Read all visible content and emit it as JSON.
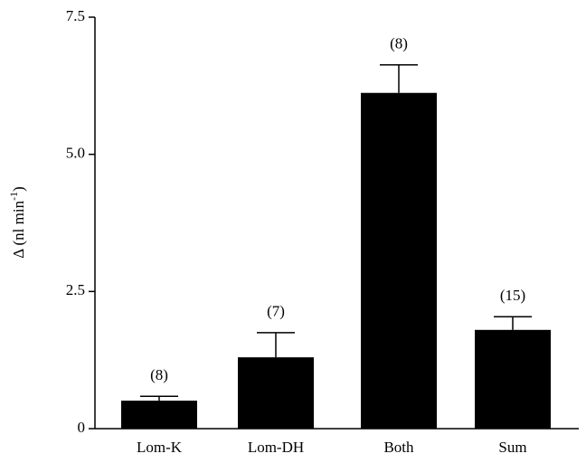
{
  "chart_data": {
    "type": "bar",
    "ylabel_parts": [
      "Δ (nl min",
      "-1",
      ")"
    ],
    "categories": [
      "Lom-K",
      "Lom-DH",
      "Both",
      "Sum"
    ],
    "values": [
      0.51,
      1.3,
      6.12,
      1.8
    ],
    "errors": [
      0.08,
      0.45,
      0.51,
      0.24
    ],
    "n_labels": [
      "(8)",
      "(7)",
      "(8)",
      "(15)"
    ],
    "color": "#000000",
    "ylim": [
      0,
      7.5
    ],
    "yticks": [
      0,
      2.5,
      {
        "value": 5,
        "label": "5.0"
      },
      7.5
    ]
  }
}
